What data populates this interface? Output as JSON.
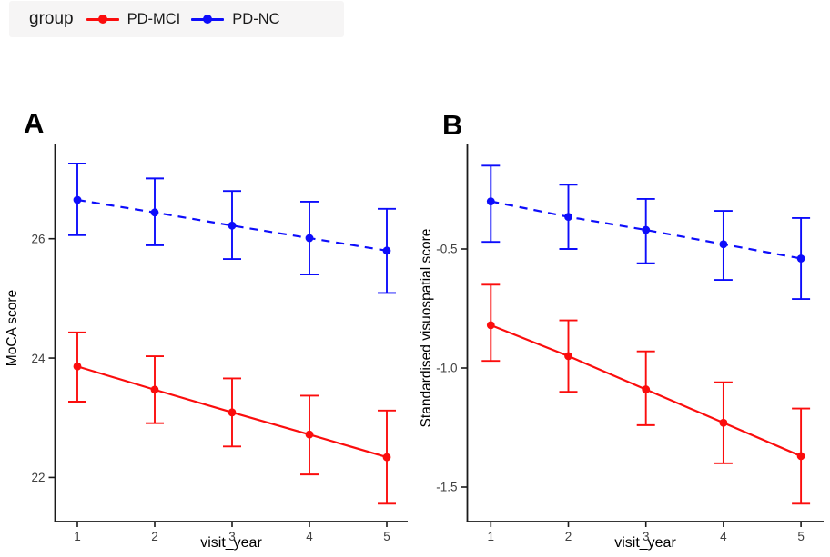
{
  "legend": {
    "title": "group",
    "items": [
      {
        "label": "PD-MCI",
        "color": "#fb0d0d"
      },
      {
        "label": "PD-NC",
        "color": "#0d0dfb"
      }
    ]
  },
  "chart_data": [
    {
      "id": "A",
      "panel_label": "A",
      "type": "line",
      "subtype": "point-range-errorbar",
      "title": "",
      "xlabel": "visit_year",
      "ylabel": "MoCA score",
      "x": [
        1,
        2,
        3,
        4,
        5
      ],
      "xtick_labels": [
        "1",
        "2",
        "3",
        "4",
        "5"
      ],
      "yticks": [
        22,
        24,
        26
      ],
      "ytick_labels": [
        "22",
        "24",
        "26"
      ],
      "ylim": [
        21.25,
        27.6
      ],
      "grid": false,
      "legend_position": "top-left-above-figure",
      "series": [
        {
          "name": "PD-MCI",
          "color": "#fb0d0d",
          "linestyle": "solid",
          "values": [
            23.86,
            23.47,
            23.09,
            22.72,
            22.34
          ],
          "lower": [
            23.27,
            22.91,
            22.52,
            22.05,
            21.56
          ],
          "upper": [
            24.43,
            24.03,
            23.66,
            23.37,
            23.12
          ]
        },
        {
          "name": "PD-NC",
          "color": "#0d0dfb",
          "linestyle": "dashed",
          "values": [
            26.65,
            26.44,
            26.22,
            26.01,
            25.8
          ],
          "lower": [
            26.06,
            25.89,
            25.66,
            25.4,
            25.09
          ],
          "upper": [
            27.26,
            27.01,
            26.8,
            26.62,
            26.5
          ]
        }
      ]
    },
    {
      "id": "B",
      "panel_label": "B",
      "type": "line",
      "subtype": "point-range-errorbar",
      "title": "",
      "xlabel": "visit_year",
      "ylabel": "Standardised visuospatial score",
      "x": [
        1,
        2,
        3,
        4,
        5
      ],
      "xtick_labels": [
        "1",
        "2",
        "3",
        "4",
        "5"
      ],
      "yticks": [
        -0.5,
        -1.0,
        -1.5
      ],
      "ytick_labels": [
        "-0.5",
        "-1.0",
        "-1.5"
      ],
      "ylim": [
        -1.65,
        -0.03
      ],
      "grid": false,
      "legend_position": "top-left-above-figure",
      "series": [
        {
          "name": "PD-MCI",
          "color": "#fb0d0d",
          "linestyle": "solid",
          "values": [
            -0.82,
            -0.95,
            -1.09,
            -1.23,
            -1.37
          ],
          "lower": [
            -0.97,
            -1.1,
            -1.24,
            -1.4,
            -1.57
          ],
          "upper": [
            -0.65,
            -0.8,
            -0.93,
            -1.06,
            -1.17
          ]
        },
        {
          "name": "PD-NC",
          "color": "#0d0dfb",
          "linestyle": "dashed",
          "values": [
            -0.3,
            -0.365,
            -0.42,
            -0.48,
            -0.54
          ],
          "lower": [
            -0.47,
            -0.5,
            -0.56,
            -0.63,
            -0.71
          ],
          "upper": [
            -0.15,
            -0.23,
            -0.29,
            -0.34,
            -0.37
          ]
        }
      ]
    }
  ]
}
